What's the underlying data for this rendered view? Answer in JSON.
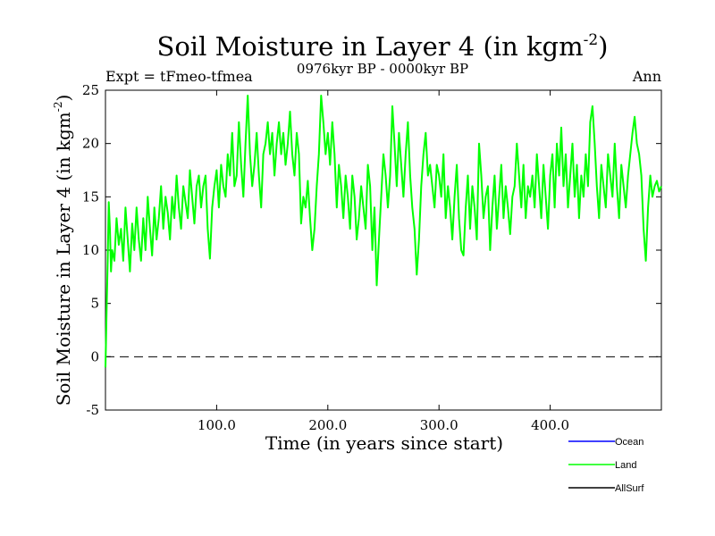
{
  "chart_data": {
    "type": "line",
    "title": "Soil Moisture in Layer 4 (in kgm",
    "title_superscript": "-2",
    "title_close": ")",
    "subtitle": "0976kyr BP - 0000kyr BP",
    "experiment_label": "Expt = tFmeo-tfmea",
    "season_label": "Ann",
    "xlabel": "Time (in years since start)",
    "ylabel": "Soil Moisture in Layer 4 (in kgm",
    "ylabel_superscript": "-2",
    "ylabel_close": ")",
    "xlim": [
      0,
      500
    ],
    "ylim": [
      -5,
      25
    ],
    "xticks": [
      100,
      200,
      300,
      400
    ],
    "xtick_labels": [
      "100.0",
      "200.0",
      "300.0",
      "400.0"
    ],
    "yticks": [
      -5,
      0,
      5,
      10,
      15,
      20,
      25
    ],
    "ytick_labels": [
      "-5",
      "0",
      "5",
      "10",
      "15",
      "20",
      "25"
    ],
    "reference_line": {
      "y": 0,
      "style": "dashed"
    },
    "legend": [
      {
        "name": "Ocean",
        "color": "#0000ff"
      },
      {
        "name": "Land",
        "color": "#00ff00"
      },
      {
        "name": "AllSurf",
        "color": "#000000"
      }
    ],
    "series": [
      {
        "name": "Land",
        "color": "#00ff00",
        "x": [
          0,
          1,
          2,
          3,
          4,
          5,
          6,
          8,
          10,
          12,
          14,
          16,
          18,
          20,
          22,
          24,
          26,
          28,
          30,
          32,
          34,
          36,
          38,
          40,
          42,
          44,
          46,
          48,
          50,
          52,
          54,
          56,
          58,
          60,
          62,
          64,
          66,
          68,
          70,
          72,
          74,
          76,
          78,
          80,
          82,
          84,
          86,
          88,
          90,
          92,
          94,
          96,
          98,
          100,
          102,
          104,
          106,
          108,
          110,
          112,
          114,
          116,
          118,
          120,
          122,
          124,
          126,
          128,
          130,
          132,
          134,
          136,
          138,
          140,
          142,
          144,
          146,
          148,
          150,
          152,
          154,
          156,
          158,
          160,
          162,
          164,
          166,
          168,
          170,
          172,
          174,
          176,
          178,
          180,
          182,
          184,
          186,
          188,
          190,
          192,
          194,
          196,
          198,
          200,
          202,
          204,
          206,
          208,
          210,
          212,
          214,
          216,
          218,
          220,
          222,
          224,
          226,
          228,
          230,
          232,
          234,
          236,
          238,
          240,
          242,
          244,
          246,
          248,
          250,
          252,
          254,
          256,
          258,
          260,
          262,
          264,
          266,
          268,
          270,
          272,
          274,
          276,
          278,
          280,
          282,
          284,
          286,
          288,
          290,
          292,
          294,
          296,
          298,
          300,
          302,
          304,
          306,
          308,
          310,
          312,
          314,
          316,
          318,
          320,
          322,
          324,
          326,
          328,
          330,
          332,
          334,
          336,
          338,
          340,
          342,
          344,
          346,
          348,
          350,
          352,
          354,
          356,
          358,
          360,
          362,
          364,
          366,
          368,
          370,
          372,
          374,
          376,
          378,
          380,
          382,
          384,
          386,
          388,
          390,
          392,
          394,
          396,
          398,
          400,
          402,
          404,
          406,
          408,
          410,
          412,
          414,
          416,
          418,
          420,
          422,
          424,
          426,
          428,
          430,
          432,
          434,
          436,
          438,
          440,
          442,
          444,
          446,
          448,
          450,
          452,
          454,
          456,
          458,
          460,
          462,
          464,
          466,
          468,
          470,
          472,
          474,
          476,
          478,
          480,
          482,
          484,
          486,
          488,
          490,
          492,
          494,
          496,
          498,
          500
        ],
        "values": [
          -1,
          4,
          9,
          14.5,
          12,
          8,
          10,
          9,
          13,
          10.5,
          12,
          9,
          14,
          11,
          8,
          12.5,
          10,
          14,
          11,
          9,
          13,
          10,
          15,
          12,
          9.5,
          14,
          11,
          13,
          16,
          12,
          15,
          13.5,
          11,
          15,
          13,
          17,
          14,
          12,
          16,
          14.5,
          13,
          17.5,
          15,
          12.5,
          16,
          17,
          14,
          16,
          17,
          12,
          9.2,
          14,
          16,
          17.5,
          14,
          18,
          16,
          15,
          19,
          17,
          21,
          16,
          17,
          22,
          18,
          15,
          20,
          24.5,
          19,
          16,
          18,
          21,
          17,
          14,
          19,
          20,
          22,
          19,
          21,
          17,
          20,
          22,
          19,
          21,
          18,
          20,
          23,
          19,
          17,
          21,
          19,
          12.5,
          15,
          14,
          16.5,
          13,
          10,
          12,
          16,
          19,
          24.5,
          22,
          19,
          21,
          18,
          22,
          19,
          14,
          18,
          16,
          13,
          17,
          15,
          12,
          17,
          15,
          11,
          13,
          16,
          14,
          12,
          18,
          16,
          10,
          14,
          6.7,
          11,
          15,
          19,
          17,
          14,
          17,
          23.5,
          20,
          16,
          21,
          18,
          15,
          19,
          22,
          17,
          14,
          12,
          7.7,
          11,
          16,
          19,
          21,
          17,
          18,
          16,
          14,
          18,
          17,
          15,
          19,
          13,
          16,
          14,
          11,
          15,
          18,
          13,
          10,
          9.5,
          14,
          17,
          12,
          16,
          14,
          11,
          20,
          17,
          13,
          15,
          16,
          10,
          14,
          17,
          12,
          15,
          18,
          13,
          16,
          14,
          11.5,
          15,
          16,
          20,
          17,
          14,
          18,
          13,
          16,
          15,
          17,
          14,
          19,
          16,
          13,
          18,
          15,
          12,
          17,
          19,
          14,
          20,
          17,
          21.5,
          16,
          19,
          14,
          17,
          20,
          15,
          18,
          13,
          17,
          15,
          19,
          16,
          22,
          23.5,
          20,
          16,
          13,
          18,
          16,
          14,
          19,
          17,
          15,
          20,
          16,
          13,
          18,
          16,
          14,
          17,
          19,
          21,
          22.5,
          20,
          19,
          17,
          12,
          9,
          14,
          17,
          15,
          16,
          16.5,
          15.5,
          16
        ]
      }
    ]
  }
}
